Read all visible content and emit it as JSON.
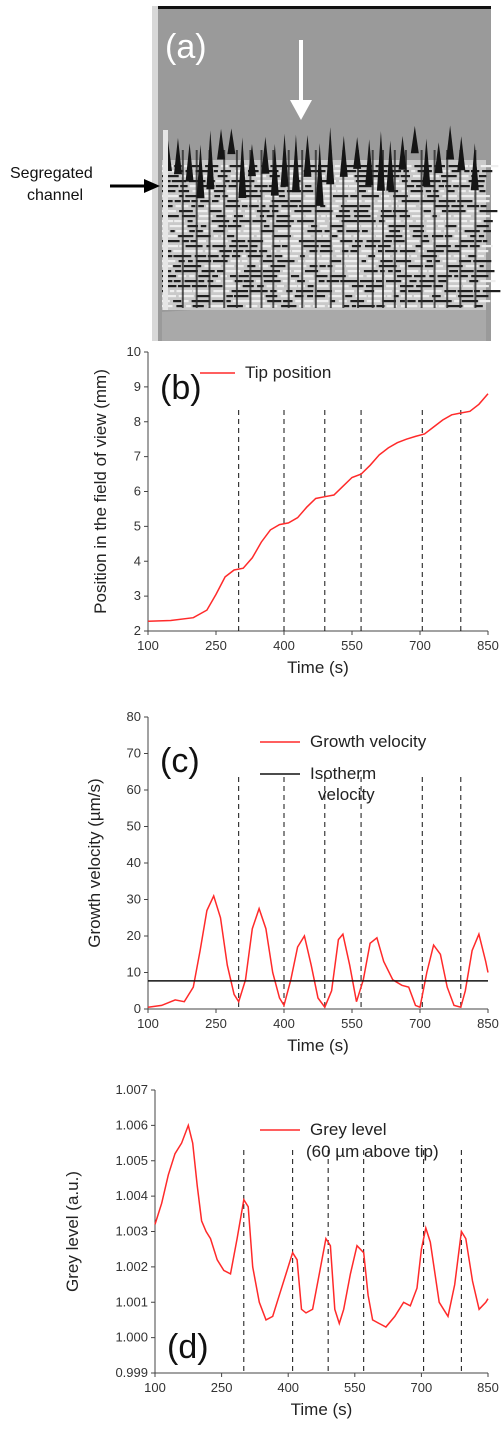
{
  "panel_a": {
    "label": "(a)",
    "annotation": [
      "Segregated",
      "channel"
    ]
  },
  "chart_data": [
    {
      "type": "line",
      "panel_label": "(b)",
      "xlabel": "Time (s)",
      "ylabel": "Position in the field of view (mm)",
      "xlim": [
        100,
        850
      ],
      "ylim": [
        2,
        10
      ],
      "xticks": [
        100,
        250,
        400,
        550,
        700,
        850
      ],
      "yticks": [
        2,
        3,
        4,
        5,
        6,
        7,
        8,
        9,
        10
      ],
      "vlines": [
        300,
        400,
        490,
        570,
        705,
        790
      ],
      "series": [
        {
          "name": "Tip position",
          "color": "#ff2a2a",
          "x": [
            100,
            150,
            200,
            230,
            250,
            270,
            290,
            310,
            330,
            350,
            370,
            390,
            410,
            430,
            450,
            470,
            490,
            510,
            530,
            550,
            570,
            590,
            610,
            630,
            650,
            670,
            690,
            710,
            730,
            750,
            770,
            790,
            810,
            830,
            850
          ],
          "y": [
            2.28,
            2.3,
            2.38,
            2.6,
            3.05,
            3.55,
            3.75,
            3.8,
            4.1,
            4.55,
            4.9,
            5.05,
            5.1,
            5.25,
            5.55,
            5.8,
            5.85,
            5.9,
            6.15,
            6.4,
            6.5,
            6.75,
            7.05,
            7.25,
            7.4,
            7.5,
            7.58,
            7.65,
            7.85,
            8.05,
            8.2,
            8.25,
            8.3,
            8.5,
            8.8
          ]
        }
      ]
    },
    {
      "type": "line",
      "panel_label": "(c)",
      "xlabel": "Time (s)",
      "ylabel": "Growth velocity (µm/s)",
      "xlim": [
        100,
        850
      ],
      "ylim": [
        0,
        80
      ],
      "xticks": [
        100,
        250,
        400,
        550,
        700,
        850
      ],
      "yticks": [
        0,
        10,
        20,
        30,
        40,
        50,
        60,
        70,
        80
      ],
      "vlines": [
        300,
        400,
        490,
        570,
        705,
        790
      ],
      "series": [
        {
          "name": "Growth velocity",
          "color": "#ff2a2a",
          "x": [
            100,
            130,
            160,
            180,
            200,
            215,
            230,
            245,
            260,
            275,
            290,
            300,
            315,
            330,
            345,
            360,
            375,
            390,
            400,
            415,
            430,
            445,
            460,
            475,
            490,
            505,
            520,
            530,
            545,
            560,
            575,
            590,
            605,
            620,
            640,
            660,
            675,
            690,
            700,
            715,
            730,
            745,
            760,
            775,
            790,
            800,
            815,
            830,
            845,
            850
          ],
          "y": [
            0.5,
            1,
            2.5,
            2,
            6,
            16,
            27,
            31,
            25,
            12,
            4,
            2,
            8,
            22,
            27.5,
            22,
            10,
            3,
            1,
            8,
            17,
            20,
            12,
            3,
            0.5,
            5,
            19,
            20.5,
            12,
            2,
            8,
            18,
            19.5,
            13,
            8,
            6.5,
            6,
            1,
            0.5,
            10,
            17.5,
            15,
            6,
            1,
            0.5,
            5,
            16,
            20.5,
            13,
            10
          ]
        },
        {
          "name": "Isotherm velocity",
          "color": "#111111",
          "x": [
            100,
            850
          ],
          "y": [
            7.7,
            7.7
          ]
        }
      ]
    },
    {
      "type": "line",
      "panel_label": "(d)",
      "xlabel": "Time (s)",
      "ylabel": "Grey level (a.u.)",
      "xlim": [
        100,
        850
      ],
      "ylim": [
        0.999,
        1.007
      ],
      "xticks": [
        100,
        250,
        400,
        550,
        700,
        850
      ],
      "yticks": [
        0.999,
        1.0,
        1.001,
        1.002,
        1.003,
        1.004,
        1.005,
        1.006,
        1.007
      ],
      "ytick_labels": [
        "0.999",
        "1.000",
        "1.001",
        "1.002",
        "1.003",
        "1.004",
        "1.005",
        "1.006",
        "1.007"
      ],
      "vlines": [
        300,
        410,
        490,
        570,
        705,
        790
      ],
      "series": [
        {
          "name": "Grey level",
          "name_line2": "(60 µm above tip)",
          "color": "#ff2a2a",
          "x": [
            100,
            115,
            130,
            145,
            160,
            175,
            185,
            195,
            205,
            215,
            225,
            240,
            255,
            270,
            285,
            300,
            310,
            320,
            335,
            350,
            365,
            380,
            395,
            410,
            420,
            430,
            440,
            455,
            470,
            485,
            495,
            505,
            515,
            525,
            540,
            555,
            570,
            580,
            590,
            605,
            620,
            640,
            660,
            675,
            690,
            700,
            710,
            720,
            740,
            760,
            775,
            790,
            800,
            815,
            830,
            845,
            850
          ],
          "y": [
            1.0032,
            1.0038,
            1.0046,
            1.0052,
            1.0055,
            1.006,
            1.0055,
            1.0043,
            1.0033,
            1.003,
            1.0028,
            1.0022,
            1.0019,
            1.0018,
            1.0028,
            1.0039,
            1.0037,
            1.002,
            1.001,
            1.0005,
            1.0006,
            1.0012,
            1.0018,
            1.0024,
            1.0022,
            1.0008,
            1.0007,
            1.0008,
            1.0018,
            1.0028,
            1.0026,
            1.0008,
            1.0004,
            1.0008,
            1.0018,
            1.0026,
            1.0024,
            1.0012,
            1.0005,
            1.0004,
            1.0003,
            1.0006,
            1.001,
            1.0009,
            1.0014,
            1.0025,
            1.0031,
            1.0027,
            1.001,
            1.0006,
            1.0015,
            1.003,
            1.0028,
            1.0016,
            1.0008,
            1.001,
            1.0011
          ]
        }
      ]
    }
  ]
}
